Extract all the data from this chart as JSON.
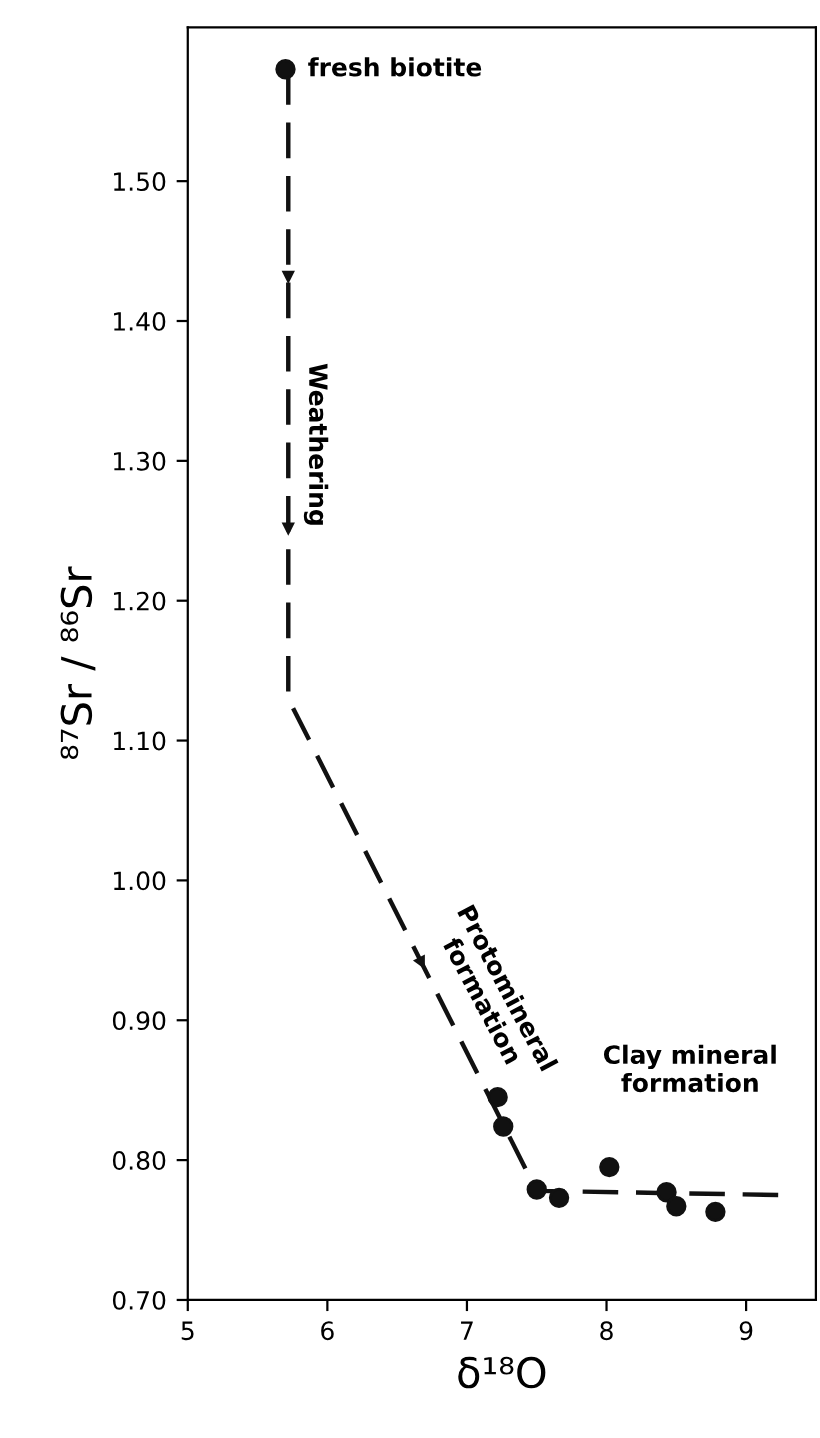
{
  "chart_data": {
    "type": "scatter",
    "xlabel": "δ¹⁸O",
    "ylabel": "⁸⁷Sr / ⁸⁶Sr",
    "xlim": [
      5,
      9.5
    ],
    "ylim": [
      0.7,
      1.61
    ],
    "xticks": [
      5,
      6,
      7,
      8,
      9
    ],
    "yticks": [
      {
        "value": 0.7,
        "label": "0.70"
      },
      {
        "value": 0.8,
        "label": "0.80"
      },
      {
        "value": 0.9,
        "label": "0.90"
      },
      {
        "value": 1.0,
        "label": "1.00"
      },
      {
        "value": 1.1,
        "label": "1.10"
      },
      {
        "value": 1.2,
        "label": "1.20"
      },
      {
        "value": 1.3,
        "label": "1.30"
      },
      {
        "value": 1.4,
        "label": "1.40"
      },
      {
        "value": 1.5,
        "label": "1.50"
      }
    ],
    "grid": false,
    "series": [
      {
        "color": "#111111",
        "marker": "circle",
        "x": [
          5.7,
          7.22,
          7.26,
          7.5,
          7.66,
          8.02,
          8.43,
          8.5,
          8.78
        ],
        "values": [
          1.58,
          0.845,
          0.824,
          0.779,
          0.773,
          0.795,
          0.777,
          0.767,
          0.763
        ]
      },
      {
        "type": "line",
        "color": "#111111",
        "line_style": "dashed",
        "marker": "none",
        "x": [
          5.72,
          5.72,
          7.5,
          9.27
        ],
        "values": [
          1.58,
          1.13,
          0.778,
          0.775
        ]
      }
    ],
    "annotations": [
      {
        "text": "fresh biotite",
        "x": 5.7,
        "y": 1.58
      },
      {
        "text": "Weathering",
        "x": 5.72,
        "y": 1.37
      },
      {
        "text": "Protomineral\nformation",
        "x": 6.6,
        "y": 0.96
      },
      "Clay mineral\nformation"
    ]
  }
}
